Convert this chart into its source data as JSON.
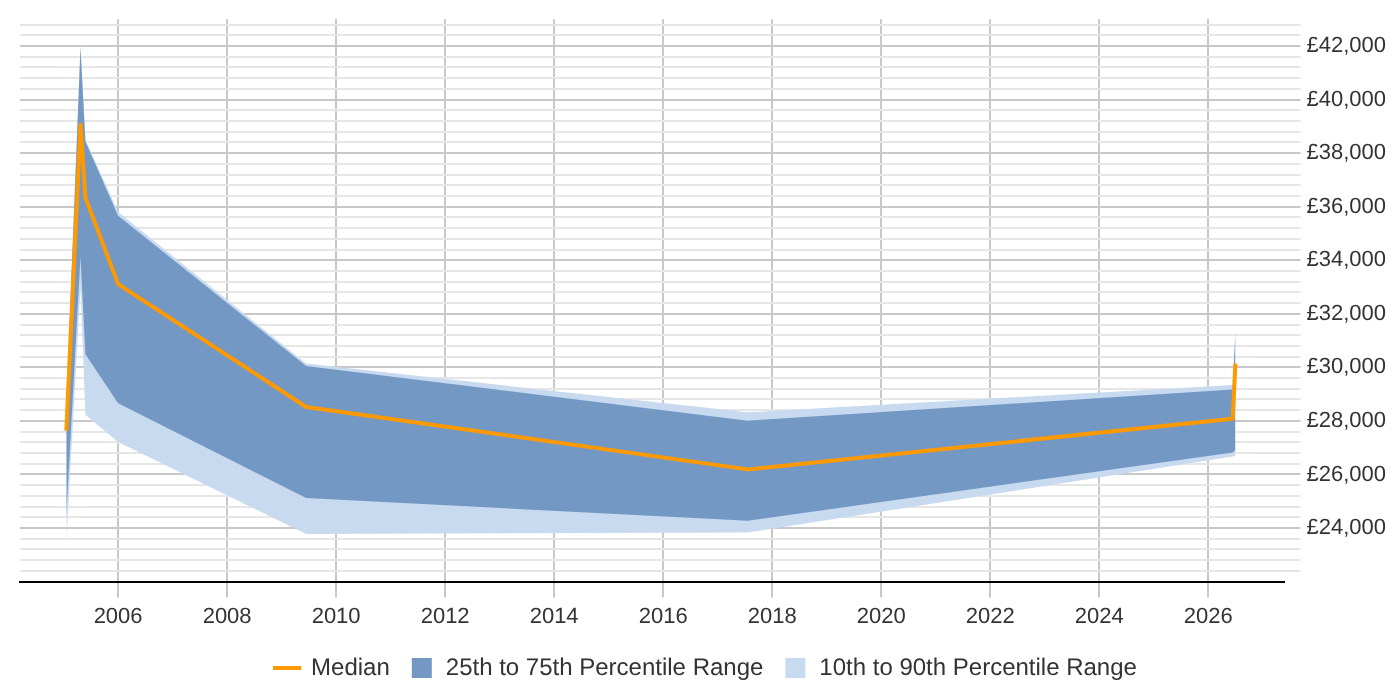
{
  "chart_data": {
    "type": "line",
    "x": [
      2005.05,
      2005.31,
      2005.4,
      2006.0,
      2009.45,
      2017.55,
      2026.45,
      2026.5
    ],
    "series": [
      {
        "name": "Median",
        "color": "#ff9900",
        "values": [
          27640,
          39060,
          36340,
          33110,
          28520,
          26190,
          28080,
          30140
        ]
      },
      {
        "name": "25th to 75th Percentile Range",
        "type": "area",
        "color": "#7398c4",
        "values": [
          null,
          null,
          null,
          null,
          null,
          null,
          null,
          null
        ],
        "lower": [
          24500,
          34130,
          30490,
          28660,
          25120,
          24270,
          26820,
          26900
        ],
        "upper": [
          28500,
          41930,
          38430,
          35660,
          30050,
          28010,
          29170,
          31360
        ]
      },
      {
        "name": "10th to 90th Percentile Range",
        "type": "area",
        "color": "#c8daef",
        "values": [
          null,
          null,
          null,
          null,
          null,
          null,
          null,
          null
        ],
        "lower": [
          23500,
          33000,
          28230,
          27210,
          23780,
          23830,
          26670,
          26700
        ],
        "upper": [
          29000,
          42000,
          38500,
          35800,
          30140,
          28320,
          29340,
          31400
        ]
      }
    ],
    "xlim": [
      2004.2,
      2027.4
    ],
    "xticks": [
      2006,
      2008,
      2010,
      2012,
      2014,
      2016,
      2018,
      2020,
      2022,
      2024,
      2026
    ],
    "ylim": [
      22000,
      43000
    ],
    "yticks": [
      {
        "value": 22400,
        "label": null
      },
      {
        "value": 22800,
        "label": null
      },
      {
        "value": 23200,
        "label": null
      },
      {
        "value": 23600,
        "label": null
      },
      {
        "value": 24000,
        "label": "£24,000"
      },
      {
        "value": 24400,
        "label": null
      },
      {
        "value": 24800,
        "label": null
      },
      {
        "value": 25200,
        "label": null
      },
      {
        "value": 25600,
        "label": null
      },
      {
        "value": 26000,
        "label": "£26,000"
      },
      {
        "value": 26400,
        "label": null
      },
      {
        "value": 26800,
        "label": null
      },
      {
        "value": 27200,
        "label": null
      },
      {
        "value": 27600,
        "label": null
      },
      {
        "value": 28000,
        "label": "£28,000"
      },
      {
        "value": 28400,
        "label": null
      },
      {
        "value": 28800,
        "label": null
      },
      {
        "value": 29200,
        "label": null
      },
      {
        "value": 29600,
        "label": null
      },
      {
        "value": 30000,
        "label": "£30,000"
      },
      {
        "value": 30400,
        "label": null
      },
      {
        "value": 30800,
        "label": null
      },
      {
        "value": 31200,
        "label": null
      },
      {
        "value": 31600,
        "label": null
      },
      {
        "value": 32000,
        "label": "£32,000"
      },
      {
        "value": 32400,
        "label": null
      },
      {
        "value": 32800,
        "label": null
      },
      {
        "value": 33200,
        "label": null
      },
      {
        "value": 33600,
        "label": null
      },
      {
        "value": 34000,
        "label": "£34,000"
      },
      {
        "value": 34400,
        "label": null
      },
      {
        "value": 34800,
        "label": null
      },
      {
        "value": 35200,
        "label": null
      },
      {
        "value": 35600,
        "label": null
      },
      {
        "value": 36000,
        "label": "£36,000"
      },
      {
        "value": 36400,
        "label": null
      },
      {
        "value": 36800,
        "label": null
      },
      {
        "value": 37200,
        "label": null
      },
      {
        "value": 37600,
        "label": null
      },
      {
        "value": 38000,
        "label": "£38,000"
      },
      {
        "value": 38400,
        "label": null
      },
      {
        "value": 38800,
        "label": null
      },
      {
        "value": 39200,
        "label": null
      },
      {
        "value": 39600,
        "label": null
      },
      {
        "value": 40000,
        "label": "£40,000"
      },
      {
        "value": 40400,
        "label": null
      },
      {
        "value": 40800,
        "label": null
      },
      {
        "value": 41200,
        "label": null
      },
      {
        "value": 41600,
        "label": null
      },
      {
        "value": 42000,
        "label": "£42,000"
      },
      {
        "value": 42400,
        "label": null
      },
      {
        "value": 42800,
        "label": null
      }
    ],
    "grid": true,
    "legend": "bottom",
    "marker": "none",
    "line_style": "solid"
  }
}
